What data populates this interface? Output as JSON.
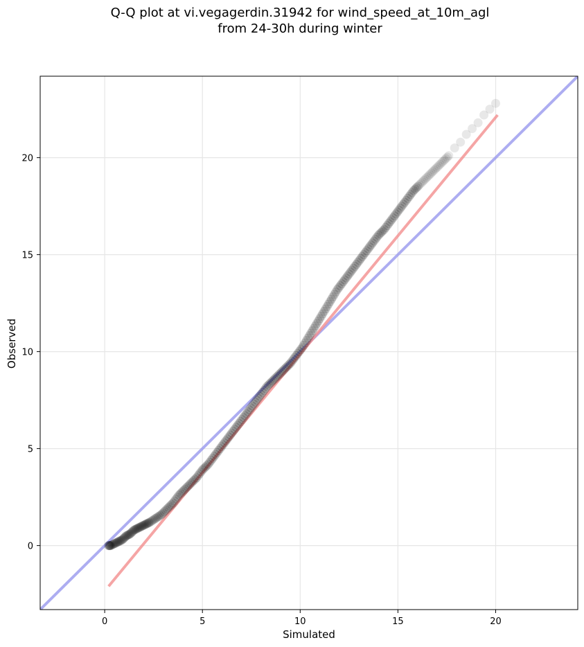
{
  "chart_data": {
    "type": "scatter",
    "title": "Q-Q plot at vi.vegagerdin.31942 for wind_speed_at_10m_agl",
    "subtitle": "from 24-30h during winter",
    "xlabel": "Simulated",
    "ylabel": "Observed",
    "xlim": [
      -3.3,
      24.2
    ],
    "ylim": [
      -3.3,
      24.2
    ],
    "xticks": [
      0,
      5,
      10,
      15,
      20
    ],
    "yticks": [
      0,
      5,
      10,
      15,
      20
    ],
    "xtick_labels": [
      "0",
      "5",
      "10",
      "15",
      "20"
    ],
    "ytick_labels": [
      "0",
      "5",
      "10",
      "15",
      "20"
    ],
    "grid": true,
    "series": [
      {
        "type": "scatter",
        "color": "#000000",
        "x": [
          0.2,
          0.3,
          0.5,
          0.7,
          0.9,
          1.1,
          1.3,
          1.5,
          1.7,
          1.9,
          2.1,
          2.3,
          2.6,
          2.9,
          3.2,
          3.5,
          3.8,
          4.1,
          4.4,
          4.7,
          5.0,
          5.3,
          5.6,
          5.9,
          6.2,
          6.5,
          6.8,
          7.1,
          7.4,
          7.7,
          8.0,
          8.3,
          8.6,
          8.9,
          9.2,
          9.5,
          9.8,
          10.1,
          10.4,
          10.7,
          11.0,
          11.3,
          11.6,
          11.9,
          12.2,
          12.5,
          12.8,
          13.1,
          13.4,
          13.7,
          14.0,
          14.3,
          14.6,
          14.9,
          15.2,
          15.5,
          15.8,
          16.1,
          16.4,
          16.7,
          17.0,
          17.3,
          17.6,
          17.9,
          18.2,
          18.5,
          18.8,
          19.1,
          19.4,
          19.7,
          20.0
        ],
        "y": [
          0.0,
          0.0,
          0.1,
          0.2,
          0.3,
          0.5,
          0.6,
          0.8,
          0.9,
          1.0,
          1.1,
          1.2,
          1.4,
          1.6,
          1.9,
          2.2,
          2.6,
          2.9,
          3.2,
          3.5,
          3.9,
          4.2,
          4.6,
          5.0,
          5.4,
          5.8,
          6.2,
          6.6,
          7.0,
          7.4,
          7.8,
          8.2,
          8.5,
          8.8,
          9.1,
          9.4,
          9.8,
          10.2,
          10.7,
          11.2,
          11.7,
          12.2,
          12.7,
          13.2,
          13.6,
          14.0,
          14.4,
          14.8,
          15.2,
          15.6,
          16.0,
          16.3,
          16.7,
          17.1,
          17.5,
          17.9,
          18.3,
          18.6,
          18.9,
          19.2,
          19.5,
          19.8,
          20.1,
          20.5,
          20.8,
          21.2,
          21.5,
          21.8,
          22.2,
          22.5,
          22.8
        ]
      },
      {
        "type": "line",
        "color": "#f28e8e",
        "x": [
          0.2,
          20.1
        ],
        "y": [
          -2.1,
          22.2
        ]
      },
      {
        "type": "line",
        "color": "#9999ee",
        "x": [
          -3.3,
          24.2
        ],
        "y": [
          -3.3,
          24.2
        ]
      }
    ]
  }
}
